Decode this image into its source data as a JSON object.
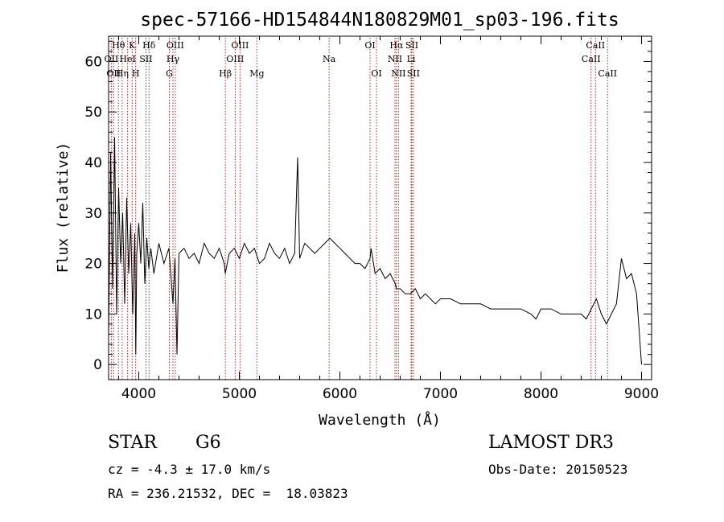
{
  "chart_data": {
    "type": "line",
    "title": "spec-57166-HD154844N180829M01_sp03-196.fits",
    "xlabel": "Wavelength (Å)",
    "ylabel": "Flux (relative)",
    "xlim": [
      3700,
      9100
    ],
    "ylim": [
      -3,
      65
    ],
    "xticks": [
      4000,
      5000,
      6000,
      7000,
      8000,
      9000
    ],
    "yticks": [
      0,
      10,
      20,
      30,
      40,
      50,
      60
    ],
    "grid": false,
    "line_color": "#000000",
    "marker_color": "#b22222",
    "series": [
      {
        "x": [
          3700,
          3720,
          3740,
          3760,
          3780,
          3800,
          3820,
          3840,
          3860,
          3880,
          3900,
          3920,
          3940,
          3960,
          3970,
          3980,
          4000,
          4020,
          4040,
          4060,
          4080,
          4100,
          4120,
          4150,
          4200,
          4250,
          4300,
          4340,
          4360,
          4380,
          4400,
          4450,
          4500,
          4550,
          4600,
          4650,
          4700,
          4750,
          4800,
          4850,
          4860,
          4900,
          4950,
          5000,
          5050,
          5100,
          5150,
          5200,
          5250,
          5300,
          5350,
          5400,
          5450,
          5500,
          5550,
          5580,
          5600,
          5650,
          5700,
          5750,
          5800,
          5850,
          5900,
          5950,
          6000,
          6050,
          6100,
          6150,
          6200,
          6250,
          6300,
          6310,
          6350,
          6400,
          6450,
          6500,
          6550,
          6563,
          6600,
          6650,
          6700,
          6750,
          6800,
          6850,
          6900,
          6950,
          7000,
          7100,
          7200,
          7300,
          7400,
          7500,
          7600,
          7700,
          7800,
          7900,
          7950,
          8000,
          8100,
          8200,
          8300,
          8400,
          8450,
          8500,
          8550,
          8600,
          8650,
          8700,
          8750,
          8800,
          8850,
          8900,
          8950,
          9000
        ],
        "y": [
          5,
          42,
          15,
          45,
          10,
          35,
          20,
          30,
          12,
          33,
          18,
          28,
          10,
          26,
          2,
          22,
          28,
          20,
          32,
          16,
          25,
          19,
          23,
          18,
          24,
          20,
          23,
          12,
          21,
          2,
          22,
          23,
          21,
          22,
          20,
          24,
          22,
          21,
          23,
          20,
          18,
          22,
          23,
          21,
          24,
          22,
          23,
          20,
          21,
          24,
          22,
          21,
          23,
          20,
          22,
          41,
          21,
          24,
          23,
          22,
          23,
          24,
          25,
          24,
          23,
          22,
          21,
          20,
          20,
          19,
          21,
          23,
          18,
          19,
          17,
          18,
          16,
          15,
          15,
          14,
          14,
          15,
          13,
          14,
          13,
          12,
          13,
          13,
          12,
          12,
          12,
          11,
          11,
          11,
          11,
          10,
          9,
          11,
          11,
          10,
          10,
          10,
          9,
          11,
          13,
          10,
          8,
          10,
          12,
          21,
          17,
          18,
          14,
          0
        ]
      }
    ],
    "markers": [
      {
        "wavelength": 3727,
        "label": "OII",
        "row": 1
      },
      {
        "wavelength": 3750,
        "label": "OII",
        "row": 2
      },
      {
        "wavelength": 3798,
        "label": "Hθ",
        "row": 0
      },
      {
        "wavelength": 3835,
        "label": "Hη",
        "row": 2
      },
      {
        "wavelength": 3889,
        "label": "HeI",
        "row": 1
      },
      {
        "wavelength": 3934,
        "label": "K",
        "row": 0
      },
      {
        "wavelength": 3969,
        "label": "H",
        "row": 2
      },
      {
        "wavelength": 4072,
        "label": "SII",
        "row": 1
      },
      {
        "wavelength": 4102,
        "label": "Hδ",
        "row": 0
      },
      {
        "wavelength": 4304,
        "label": "G",
        "row": 2
      },
      {
        "wavelength": 4340,
        "label": "Hγ",
        "row": 1
      },
      {
        "wavelength": 4363,
        "label": "OIII",
        "row": 0
      },
      {
        "wavelength": 4861,
        "label": "Hβ",
        "row": 2
      },
      {
        "wavelength": 4959,
        "label": "OIII",
        "row": 1
      },
      {
        "wavelength": 5007,
        "label": "OIII",
        "row": 0
      },
      {
        "wavelength": 5175,
        "label": "Mg",
        "row": 2
      },
      {
        "wavelength": 5893,
        "label": "Na",
        "row": 1
      },
      {
        "wavelength": 6300,
        "label": "OI",
        "row": 0
      },
      {
        "wavelength": 6364,
        "label": "OI",
        "row": 2
      },
      {
        "wavelength": 6548,
        "label": "NII",
        "row": 1
      },
      {
        "wavelength": 6563,
        "label": "Hα",
        "row": 0
      },
      {
        "wavelength": 6583,
        "label": "NII",
        "row": 2
      },
      {
        "wavelength": 6708,
        "label": "Li",
        "row": 1
      },
      {
        "wavelength": 6716,
        "label": "SII",
        "row": 0
      },
      {
        "wavelength": 6731,
        "label": "SII",
        "row": 2
      },
      {
        "wavelength": 8498,
        "label": "CaII",
        "row": 1
      },
      {
        "wavelength": 8542,
        "label": "CaII",
        "row": 0
      },
      {
        "wavelength": 8662,
        "label": "CaII",
        "row": 2
      }
    ]
  },
  "footer": {
    "class_label": "STAR",
    "subclass": "G6",
    "survey": "LAMOST DR3",
    "redshift": "cz = -4.3 ± 17.0 km/s",
    "obs_date": "Obs-Date: 20150523",
    "coords": "RA = 236.21532, DEC =  18.03823"
  }
}
